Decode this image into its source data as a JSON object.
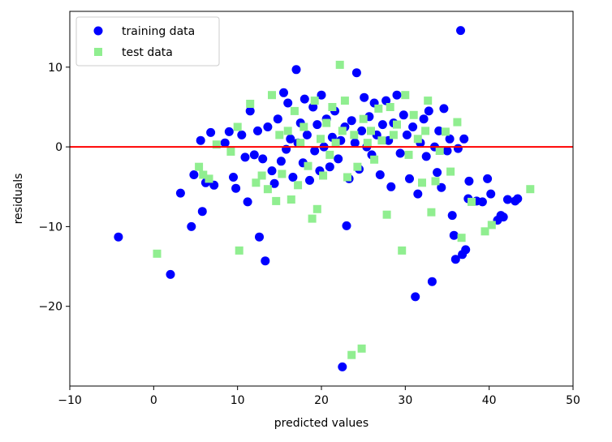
{
  "chart_data": {
    "type": "scatter",
    "xlabel": "predicted values",
    "ylabel": "residuals",
    "xlim": [
      -10,
      50
    ],
    "ylim": [
      -30,
      17
    ],
    "x_ticks": [
      -10,
      0,
      10,
      20,
      30,
      40,
      50
    ],
    "y_ticks": [
      -20,
      -10,
      0,
      10
    ],
    "x_tick_labels": [
      "−10",
      "0",
      "10",
      "20",
      "30",
      "40",
      "50"
    ],
    "y_tick_labels": [
      "−20",
      "−10",
      "0",
      "10"
    ],
    "grid": false,
    "legend_position": "top-left",
    "reference_line": {
      "y": 0,
      "color": "#ff0000"
    },
    "series": [
      {
        "name": "training data",
        "marker": "circle",
        "color": "#0000ff",
        "points": [
          [
            -4.2,
            -11.3
          ],
          [
            2.0,
            -16.0
          ],
          [
            3.2,
            -5.8
          ],
          [
            4.5,
            -10.0
          ],
          [
            4.8,
            -3.5
          ],
          [
            5.6,
            0.8
          ],
          [
            5.8,
            -8.1
          ],
          [
            6.2,
            -4.5
          ],
          [
            6.8,
            1.8
          ],
          [
            7.2,
            -4.8
          ],
          [
            8.5,
            0.5
          ],
          [
            9.0,
            1.9
          ],
          [
            9.5,
            -3.8
          ],
          [
            9.8,
            -5.2
          ],
          [
            10.5,
            1.5
          ],
          [
            10.9,
            -1.3
          ],
          [
            11.2,
            -6.9
          ],
          [
            11.5,
            4.5
          ],
          [
            12.0,
            -1.0
          ],
          [
            12.4,
            2.0
          ],
          [
            12.6,
            -11.3
          ],
          [
            13.0,
            -1.5
          ],
          [
            13.3,
            -14.3
          ],
          [
            13.6,
            2.5
          ],
          [
            14.1,
            -3.0
          ],
          [
            14.4,
            -4.6
          ],
          [
            14.8,
            3.5
          ],
          [
            15.2,
            -1.8
          ],
          [
            15.5,
            6.8
          ],
          [
            15.8,
            -0.3
          ],
          [
            16.0,
            5.5
          ],
          [
            16.3,
            1.0
          ],
          [
            16.6,
            -3.8
          ],
          [
            17.0,
            9.7
          ],
          [
            17.2,
            0.5
          ],
          [
            17.5,
            3.0
          ],
          [
            17.8,
            -2.0
          ],
          [
            18.0,
            6.0
          ],
          [
            18.3,
            1.5
          ],
          [
            18.6,
            -4.2
          ],
          [
            19.0,
            5.0
          ],
          [
            19.2,
            -0.5
          ],
          [
            19.5,
            2.8
          ],
          [
            19.8,
            -3.0
          ],
          [
            20.0,
            6.5
          ],
          [
            20.3,
            0.0
          ],
          [
            20.6,
            3.5
          ],
          [
            21.0,
            -2.5
          ],
          [
            21.3,
            1.2
          ],
          [
            21.6,
            4.5
          ],
          [
            22.0,
            -1.5
          ],
          [
            22.3,
            0.8
          ],
          [
            22.5,
            -27.6
          ],
          [
            22.8,
            2.5
          ],
          [
            23.0,
            -9.9
          ],
          [
            23.3,
            -4.0
          ],
          [
            23.6,
            3.3
          ],
          [
            24.0,
            0.5
          ],
          [
            24.2,
            9.3
          ],
          [
            24.5,
            -2.8
          ],
          [
            24.8,
            2.0
          ],
          [
            25.1,
            6.2
          ],
          [
            25.4,
            0.0
          ],
          [
            25.7,
            3.8
          ],
          [
            26.0,
            -1.0
          ],
          [
            26.3,
            5.5
          ],
          [
            26.6,
            1.5
          ],
          [
            27.0,
            -3.5
          ],
          [
            27.3,
            2.8
          ],
          [
            27.7,
            5.8
          ],
          [
            28.0,
            0.8
          ],
          [
            28.3,
            -5.0
          ],
          [
            28.6,
            3.0
          ],
          [
            29.0,
            6.5
          ],
          [
            29.4,
            -0.8
          ],
          [
            29.8,
            4.0
          ],
          [
            30.2,
            1.5
          ],
          [
            30.5,
            -4.0
          ],
          [
            30.9,
            2.5
          ],
          [
            31.2,
            -18.8
          ],
          [
            31.5,
            -5.9
          ],
          [
            31.8,
            0.5
          ],
          [
            32.2,
            3.5
          ],
          [
            32.5,
            -1.2
          ],
          [
            32.8,
            4.5
          ],
          [
            33.2,
            -16.9
          ],
          [
            33.5,
            0.0
          ],
          [
            33.8,
            -3.2
          ],
          [
            34.0,
            2.0
          ],
          [
            34.3,
            -5.1
          ],
          [
            34.6,
            4.8
          ],
          [
            35.0,
            -0.5
          ],
          [
            35.3,
            1.0
          ],
          [
            35.6,
            -8.6
          ],
          [
            35.8,
            -11.1
          ],
          [
            36.0,
            -14.1
          ],
          [
            36.3,
            -0.2
          ],
          [
            36.6,
            14.6
          ],
          [
            36.8,
            -13.5
          ],
          [
            37.0,
            1.0
          ],
          [
            37.2,
            -12.9
          ],
          [
            37.5,
            -6.5
          ],
          [
            37.6,
            -4.3
          ],
          [
            38.5,
            -6.8
          ],
          [
            39.2,
            -6.9
          ],
          [
            39.8,
            -4.0
          ],
          [
            40.2,
            -5.9
          ],
          [
            41.0,
            -9.2
          ],
          [
            41.4,
            -8.6
          ],
          [
            41.7,
            -8.8
          ],
          [
            42.2,
            -6.6
          ],
          [
            43.1,
            -6.8
          ],
          [
            43.4,
            -6.5
          ]
        ]
      },
      {
        "name": "test data",
        "marker": "square",
        "color": "#90ee90",
        "points": [
          [
            0.4,
            -13.4
          ],
          [
            5.4,
            -2.5
          ],
          [
            5.9,
            -3.5
          ],
          [
            6.6,
            -4.0
          ],
          [
            7.5,
            0.3
          ],
          [
            9.2,
            -0.6
          ],
          [
            10.0,
            2.5
          ],
          [
            10.2,
            -13.0
          ],
          [
            11.5,
            5.4
          ],
          [
            12.2,
            -4.5
          ],
          [
            12.9,
            -3.6
          ],
          [
            13.6,
            -5.3
          ],
          [
            14.1,
            6.5
          ],
          [
            14.6,
            -6.8
          ],
          [
            15.0,
            1.5
          ],
          [
            15.3,
            -3.4
          ],
          [
            16.0,
            2.0
          ],
          [
            16.4,
            -6.6
          ],
          [
            16.8,
            4.5
          ],
          [
            17.2,
            -4.8
          ],
          [
            17.5,
            0.5
          ],
          [
            17.9,
            2.5
          ],
          [
            18.4,
            -2.4
          ],
          [
            18.9,
            -9.0
          ],
          [
            19.2,
            5.8
          ],
          [
            19.5,
            -7.8
          ],
          [
            19.9,
            1.0
          ],
          [
            20.2,
            -3.6
          ],
          [
            20.6,
            3.0
          ],
          [
            21.0,
            -1.0
          ],
          [
            21.3,
            5.0
          ],
          [
            21.7,
            0.5
          ],
          [
            22.2,
            10.3
          ],
          [
            22.5,
            2.0
          ],
          [
            22.8,
            5.8
          ],
          [
            23.1,
            -3.8
          ],
          [
            23.6,
            -26.1
          ],
          [
            23.9,
            1.5
          ],
          [
            24.3,
            -2.5
          ],
          [
            24.8,
            -25.3
          ],
          [
            25.0,
            3.5
          ],
          [
            25.5,
            0.5
          ],
          [
            25.9,
            2.0
          ],
          [
            26.3,
            -1.6
          ],
          [
            26.8,
            4.8
          ],
          [
            27.2,
            0.8
          ],
          [
            27.8,
            -8.5
          ],
          [
            28.2,
            5.0
          ],
          [
            28.6,
            1.5
          ],
          [
            29.0,
            2.8
          ],
          [
            29.6,
            -13.0
          ],
          [
            30.0,
            6.5
          ],
          [
            30.4,
            -1.0
          ],
          [
            31.0,
            4.0
          ],
          [
            31.5,
            1.0
          ],
          [
            32.0,
            -4.5
          ],
          [
            32.4,
            2.0
          ],
          [
            32.7,
            5.8
          ],
          [
            33.1,
            -8.2
          ],
          [
            33.6,
            -4.3
          ],
          [
            34.1,
            -0.5
          ],
          [
            34.8,
            1.9
          ],
          [
            35.4,
            -3.1
          ],
          [
            36.2,
            3.1
          ],
          [
            36.7,
            -11.4
          ],
          [
            37.9,
            -6.9
          ],
          [
            39.5,
            -10.6
          ],
          [
            40.3,
            -9.8
          ],
          [
            44.9,
            -5.3
          ]
        ]
      }
    ]
  }
}
